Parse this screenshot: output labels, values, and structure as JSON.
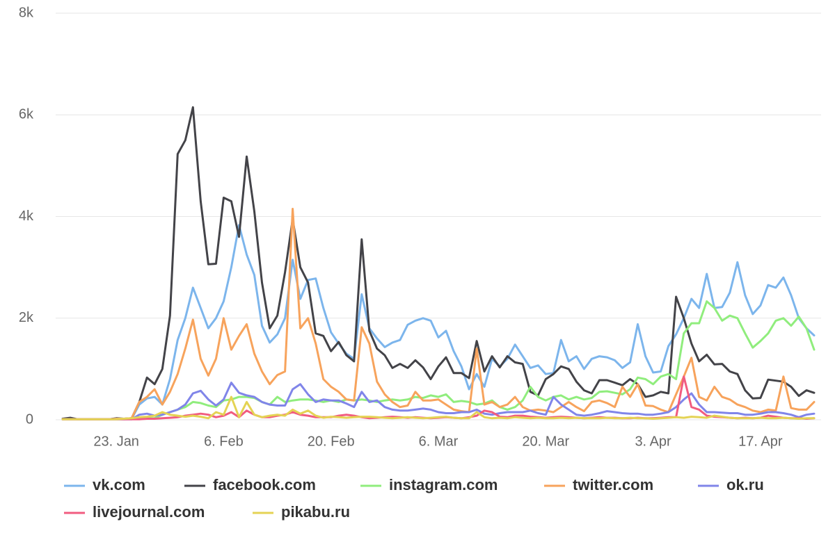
{
  "chart_data": {
    "type": "line",
    "categories": [
      null,
      null,
      null,
      null,
      null,
      null,
      null,
      "23. Jan",
      null,
      null,
      null,
      null,
      null,
      null,
      null,
      null,
      null,
      null,
      null,
      null,
      null,
      "6. Feb",
      null,
      null,
      null,
      null,
      null,
      null,
      null,
      null,
      null,
      null,
      null,
      null,
      null,
      "20. Feb",
      null,
      null,
      null,
      null,
      null,
      null,
      null,
      null,
      null,
      null,
      null,
      null,
      null,
      "6. Mar",
      null,
      null,
      null,
      null,
      null,
      null,
      null,
      null,
      null,
      null,
      null,
      null,
      null,
      "20. Mar",
      null,
      null,
      null,
      null,
      null,
      null,
      null,
      null,
      null,
      null,
      null,
      null,
      null,
      "3. Apr",
      null,
      null,
      null,
      null,
      null,
      null,
      null,
      null,
      null,
      null,
      null,
      null,
      null,
      "17. Apr",
      null,
      null,
      null,
      null,
      null,
      null,
      null
    ],
    "ylim": [
      0,
      8000
    ],
    "yticks": [
      0,
      {
        "value": 2000,
        "label": "2k"
      },
      {
        "value": 4000,
        "label": "4k"
      },
      {
        "value": 6000,
        "label": "6k"
      },
      {
        "value": 8000,
        "label": "8k"
      }
    ],
    "grid": true,
    "legend": "bottom",
    "series": [
      {
        "name": "vk.com",
        "color": "#7cb5ec",
        "values": [
          10,
          20,
          10,
          10,
          10,
          10,
          10,
          10,
          20,
          20,
          300,
          420,
          450,
          300,
          800,
          1570,
          2000,
          2600,
          2200,
          1800,
          2000,
          2330,
          3000,
          3830,
          3250,
          2850,
          1850,
          1520,
          1680,
          2000,
          3150,
          2380,
          2750,
          2780,
          2200,
          1720,
          1500,
          1300,
          1200,
          2470,
          1800,
          1600,
          1430,
          1520,
          1570,
          1870,
          1950,
          2000,
          1950,
          1620,
          1750,
          1350,
          1050,
          600,
          900,
          650,
          1200,
          1050,
          1200,
          1480,
          1250,
          1020,
          1070,
          900,
          920,
          1570,
          1150,
          1250,
          1000,
          1200,
          1250,
          1230,
          1170,
          1020,
          1130,
          1880,
          1250,
          930,
          950,
          1450,
          1680,
          2000,
          2380,
          2200,
          2870,
          2200,
          2220,
          2500,
          3100,
          2450,
          2080,
          2250,
          2650,
          2600,
          2800,
          2450,
          2000,
          1800,
          1660
        ]
      },
      {
        "name": "facebook.com",
        "color": "#434348",
        "values": [
          20,
          40,
          10,
          10,
          10,
          10,
          10,
          30,
          20,
          30,
          350,
          830,
          700,
          1000,
          2050,
          5230,
          5500,
          6150,
          4300,
          3060,
          3070,
          4370,
          4300,
          3600,
          5180,
          4100,
          2700,
          1800,
          2050,
          2900,
          3950,
          3000,
          2700,
          1700,
          1650,
          1350,
          1530,
          1270,
          1150,
          3550,
          1750,
          1400,
          1270,
          1020,
          1100,
          1020,
          1170,
          1030,
          800,
          1050,
          1230,
          920,
          920,
          820,
          1550,
          950,
          1250,
          1030,
          1250,
          1130,
          1100,
          550,
          480,
          800,
          900,
          1050,
          1000,
          750,
          580,
          520,
          780,
          780,
          730,
          680,
          800,
          700,
          450,
          480,
          550,
          520,
          2420,
          2000,
          1500,
          1150,
          1280,
          1090,
          1100,
          950,
          900,
          580,
          420,
          430,
          790,
          770,
          750,
          650,
          470,
          580,
          530
        ]
      },
      {
        "name": "instagram.com",
        "color": "#90ed7d",
        "values": [
          10,
          10,
          10,
          10,
          10,
          10,
          10,
          10,
          10,
          20,
          20,
          30,
          30,
          100,
          150,
          200,
          250,
          350,
          330,
          280,
          250,
          380,
          400,
          450,
          450,
          430,
          350,
          300,
          450,
          350,
          380,
          400,
          400,
          380,
          350,
          380,
          350,
          400,
          380,
          400,
          380,
          350,
          380,
          400,
          380,
          400,
          450,
          430,
          480,
          450,
          500,
          350,
          370,
          350,
          300,
          320,
          380,
          250,
          200,
          250,
          380,
          650,
          450,
          380,
          450,
          480,
          400,
          450,
          400,
          430,
          550,
          560,
          530,
          500,
          600,
          830,
          800,
          700,
          850,
          900,
          800,
          1700,
          1900,
          1900,
          2330,
          2200,
          1950,
          2050,
          2000,
          1700,
          1420,
          1550,
          1700,
          1950,
          2000,
          1850,
          2030,
          1800,
          1380
        ]
      },
      {
        "name": "twitter.com",
        "color": "#f7a35c",
        "values": [
          10,
          10,
          10,
          10,
          10,
          10,
          10,
          20,
          20,
          30,
          350,
          450,
          600,
          300,
          550,
          900,
          1400,
          1970,
          1200,
          870,
          1200,
          2000,
          1380,
          1650,
          1880,
          1300,
          950,
          700,
          880,
          950,
          4150,
          1800,
          2000,
          1500,
          800,
          650,
          550,
          400,
          380,
          1820,
          1500,
          750,
          500,
          350,
          250,
          280,
          550,
          380,
          380,
          400,
          300,
          200,
          170,
          150,
          1400,
          300,
          350,
          250,
          300,
          450,
          250,
          180,
          200,
          180,
          150,
          250,
          350,
          250,
          170,
          350,
          380,
          330,
          250,
          650,
          450,
          700,
          280,
          270,
          200,
          150,
          500,
          850,
          1220,
          450,
          380,
          650,
          450,
          400,
          300,
          250,
          180,
          150,
          200,
          180,
          850,
          230,
          200,
          200,
          350
        ]
      },
      {
        "name": "ok.ru",
        "color": "#8085e9",
        "values": [
          10,
          10,
          10,
          10,
          10,
          10,
          10,
          10,
          10,
          10,
          100,
          120,
          80,
          100,
          150,
          200,
          300,
          520,
          570,
          400,
          280,
          400,
          730,
          530,
          480,
          450,
          350,
          300,
          280,
          280,
          600,
          700,
          500,
          350,
          400,
          380,
          380,
          320,
          250,
          550,
          350,
          380,
          250,
          200,
          180,
          180,
          200,
          220,
          200,
          150,
          130,
          130,
          150,
          150,
          200,
          120,
          100,
          130,
          150,
          150,
          150,
          180,
          130,
          100,
          450,
          300,
          200,
          100,
          80,
          100,
          130,
          170,
          150,
          130,
          120,
          120,
          100,
          100,
          120,
          150,
          250,
          400,
          520,
          300,
          150,
          150,
          140,
          130,
          130,
          100,
          100,
          120,
          150,
          150,
          130,
          100,
          50,
          100,
          120
        ]
      },
      {
        "name": "livejournal.com",
        "color": "#f15c80",
        "values": [
          10,
          10,
          10,
          10,
          10,
          10,
          10,
          10,
          10,
          10,
          10,
          20,
          20,
          30,
          40,
          50,
          80,
          100,
          120,
          100,
          50,
          80,
          150,
          50,
          180,
          100,
          50,
          50,
          80,
          100,
          150,
          100,
          80,
          50,
          50,
          50,
          80,
          100,
          80,
          50,
          30,
          40,
          50,
          60,
          50,
          40,
          50,
          40,
          30,
          40,
          50,
          40,
          30,
          50,
          80,
          180,
          150,
          60,
          50,
          80,
          80,
          60,
          50,
          40,
          50,
          60,
          50,
          40,
          30,
          40,
          50,
          40,
          40,
          30,
          30,
          40,
          30,
          30,
          40,
          50,
          50,
          850,
          250,
          200,
          80,
          60,
          50,
          40,
          30,
          40,
          30,
          40,
          80,
          60,
          40,
          30,
          30,
          20,
          30
        ]
      },
      {
        "name": "pikabu.ru",
        "color": "#e4d354",
        "values": [
          10,
          10,
          10,
          10,
          10,
          10,
          10,
          10,
          20,
          30,
          50,
          60,
          80,
          150,
          100,
          80,
          60,
          80,
          60,
          30,
          150,
          100,
          450,
          50,
          350,
          100,
          50,
          80,
          100,
          80,
          200,
          120,
          180,
          80,
          40,
          60,
          50,
          40,
          50,
          60,
          60,
          50,
          40,
          30,
          40,
          50,
          40,
          30,
          40,
          50,
          60,
          40,
          30,
          30,
          150,
          50,
          30,
          40,
          30,
          50,
          40,
          30,
          40,
          30,
          30,
          40,
          30,
          40,
          30,
          30,
          30,
          40,
          30,
          30,
          40,
          30,
          30,
          20,
          30,
          40,
          50,
          40,
          60,
          50,
          40,
          80,
          60,
          40,
          30,
          30,
          30,
          40,
          30,
          30,
          40,
          30,
          20,
          30,
          30
        ]
      }
    ]
  }
}
